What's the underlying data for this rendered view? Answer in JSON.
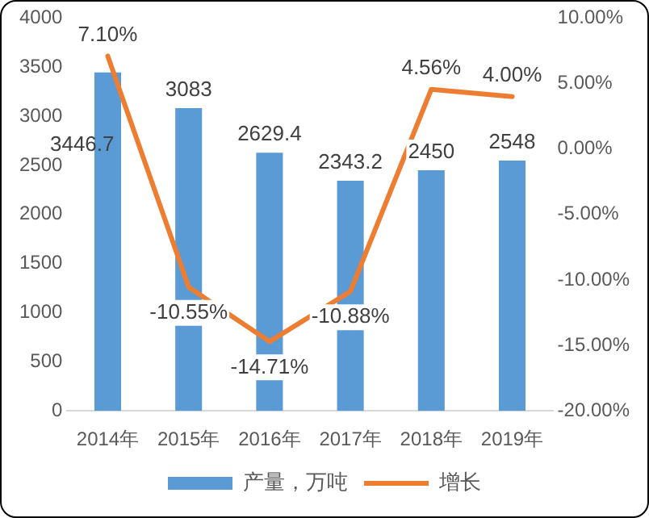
{
  "chart_data": {
    "type": "bar",
    "categories": [
      "2014年",
      "2015年",
      "2016年",
      "2017年",
      "2018年",
      "2019年"
    ],
    "series": [
      {
        "name": "产量，万吨",
        "color": "#5b9bd5",
        "values": [
          3446.7,
          3083,
          2629.4,
          2343.2,
          2450,
          2548
        ],
        "value_labels": [
          "3446.7",
          "3083",
          "2629.4",
          "2343.2",
          "2450",
          "2548"
        ]
      },
      {
        "name": "增长",
        "type": "line",
        "axis": "y2",
        "color": "#ed7d31",
        "values": [
          7.1,
          -10.55,
          -14.71,
          -10.88,
          4.56,
          4.0
        ],
        "value_labels": [
          "7.10%",
          "-10.55%",
          "-14.71%",
          "-10.88%",
          "4.56%",
          "4.00%"
        ]
      }
    ],
    "ylim": [
      0,
      4000
    ],
    "yticks": [
      0,
      500,
      1000,
      1500,
      2000,
      2500,
      3000,
      3500,
      4000
    ],
    "y2lim": [
      -20,
      10
    ],
    "y2ticks": [
      {
        "value": -20,
        "label": "-20.00%"
      },
      {
        "value": -15,
        "label": "-15.00%"
      },
      {
        "value": -10,
        "label": "-10.00%"
      },
      {
        "value": -5,
        "label": "-5.00%"
      },
      {
        "value": 0,
        "label": "0.00%"
      },
      {
        "value": 5,
        "label": "5.00%"
      },
      {
        "value": 10,
        "label": "10.00%"
      }
    ],
    "legend": "bottom",
    "marker": "none"
  }
}
